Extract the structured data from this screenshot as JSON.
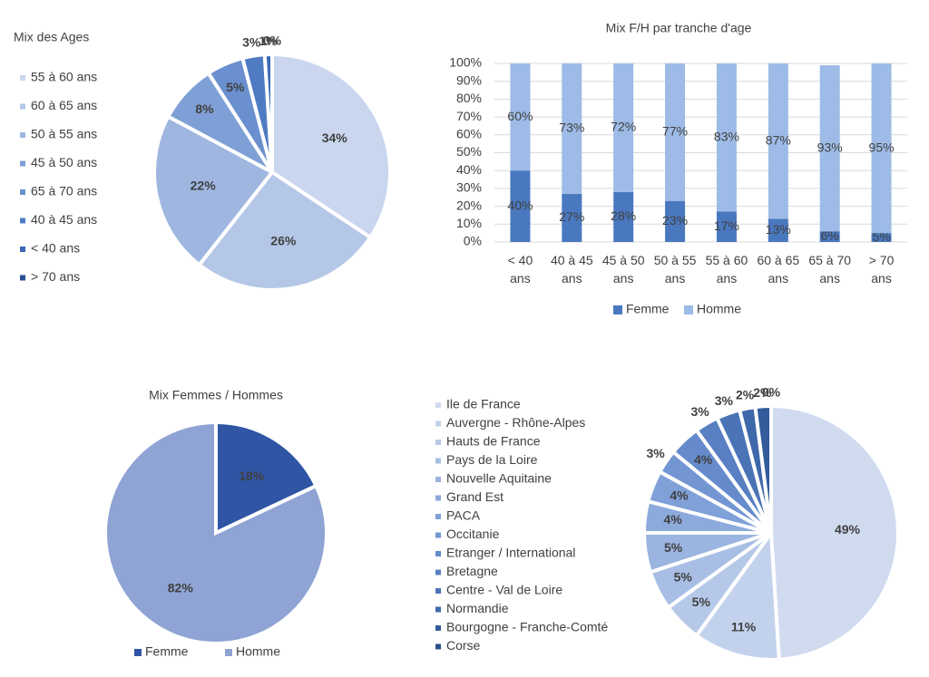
{
  "chart_data": [
    {
      "type": "pie",
      "title": "Mix des Ages",
      "categories": [
        "55 à 60 ans",
        "60 à 65 ans",
        "50 à 55 ans",
        "45 à 50 ans",
        "65 à 70 ans",
        "40 à 45 ans",
        "< 40 ans",
        "> 70 ans"
      ],
      "values": [
        34,
        26,
        22,
        8,
        5,
        3,
        1,
        0
      ],
      "value_labels": [
        "34%",
        "26%",
        "22%",
        "8%",
        "5%",
        "3%",
        "1%",
        "0%"
      ],
      "colors": [
        "#c9d6ee",
        "#b4c7e7",
        "#9fb6e0",
        "#7fa0d6",
        "#6a90cf",
        "#4f7bc2",
        "#3a68b4",
        "#2a4f8f"
      ],
      "legend": "left"
    },
    {
      "type": "bar",
      "title": "Mix F/H par tranche d'age",
      "categories": [
        "< 40 ans",
        "40 à 45 ans",
        "45 à 50 ans",
        "50 à 55 ans",
        "55 à 60 ans",
        "60 à 65 ans",
        "65 à 70 ans",
        "> 70 ans"
      ],
      "stacked": true,
      "series": [
        {
          "name": "Femme",
          "color": "#4a78bf",
          "values": [
            40,
            27,
            28,
            23,
            17,
            13,
            6,
            5
          ],
          "value_labels": [
            "40%",
            "27%",
            "28%",
            "23%",
            "17%",
            "13%",
            "6%",
            "5%"
          ]
        },
        {
          "name": "Homme",
          "color": "#9dbbe6",
          "values": [
            60,
            73,
            72,
            77,
            83,
            87,
            93,
            95
          ],
          "value_labels": [
            "60%",
            "73%",
            "72%",
            "77%",
            "83%",
            "87%",
            "93%",
            "95%"
          ]
        }
      ],
      "ylim": [
        0,
        100
      ],
      "yticks": [
        {
          "value": 0,
          "label": "0%"
        },
        {
          "value": 10,
          "label": "10%"
        },
        {
          "value": 20,
          "label": "20%"
        },
        {
          "value": 30,
          "label": "30%"
        },
        {
          "value": 40,
          "label": "40%"
        },
        {
          "value": 50,
          "label": "50%"
        },
        {
          "value": 60,
          "label": "60%"
        },
        {
          "value": 70,
          "label": "70%"
        },
        {
          "value": 80,
          "label": "80%"
        },
        {
          "value": 90,
          "label": "90%"
        },
        {
          "value": 100,
          "label": "100%"
        }
      ],
      "grid": true,
      "legend": "bottom"
    },
    {
      "type": "pie",
      "title": "Mix Femmes / Hommes",
      "categories": [
        "Femme",
        "Homme"
      ],
      "values": [
        18,
        82
      ],
      "value_labels": [
        "18%",
        "82%"
      ],
      "colors": [
        "#2f55a4",
        "#8fa3d4"
      ],
      "legend": "bottom"
    },
    {
      "type": "pie",
      "categories": [
        "Ile de France",
        "Auvergne - Rhône-Alpes",
        "Hauts de France",
        "Pays de la Loire",
        "Nouvelle Aquitaine",
        "Grand Est",
        "PACA",
        "Occitanie",
        "Etranger / International",
        "Bretagne",
        "Centre - Val de Loire",
        "Normandie",
        "Bourgogne - Franche-Comté",
        "Corse"
      ],
      "values": [
        49,
        11,
        5,
        5,
        5,
        4,
        4,
        3,
        4,
        3,
        3,
        2,
        2,
        0
      ],
      "value_labels": [
        "49%",
        "11%",
        "5%",
        "5%",
        "5%",
        "4%",
        "4%",
        "3%",
        "4%",
        "3%",
        "3%",
        "2%",
        "2%",
        "0%"
      ],
      "colors": [
        "#d0dbf0",
        "#c3d2ec",
        "#b6c8e8",
        "#a8bee4",
        "#9bb4e0",
        "#8daadc",
        "#80a0d8",
        "#7396d3",
        "#658bcc",
        "#5880c2",
        "#4b74b7",
        "#3f68aa",
        "#345c9c",
        "#2a4f8c"
      ],
      "legend": "left"
    }
  ]
}
